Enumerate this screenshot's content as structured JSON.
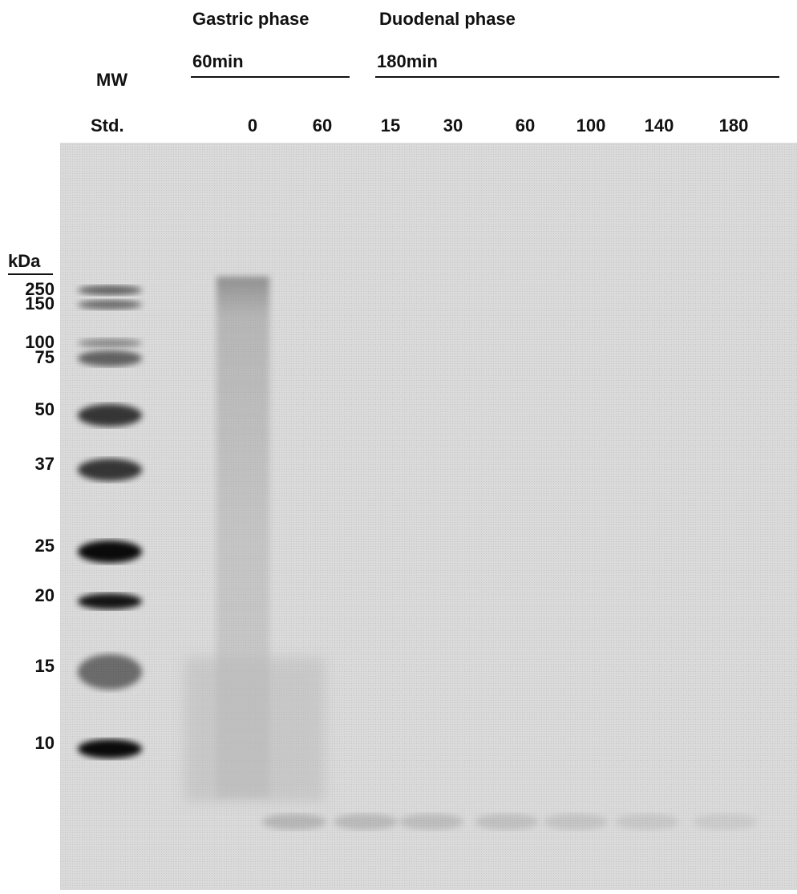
{
  "header": {
    "phases": [
      {
        "title": "Gastric phase",
        "time": "60min"
      },
      {
        "title": "Duodenal phase",
        "time": "180min"
      }
    ],
    "standard": {
      "line1": "MW",
      "line2": "Std."
    }
  },
  "lanes": [
    "0",
    "60",
    "15",
    "30",
    "60",
    "100",
    "140",
    "180"
  ],
  "marker": {
    "unit": "kDa",
    "labels": [
      250,
      150,
      100,
      75,
      50,
      37,
      25,
      20,
      15,
      10
    ]
  }
}
